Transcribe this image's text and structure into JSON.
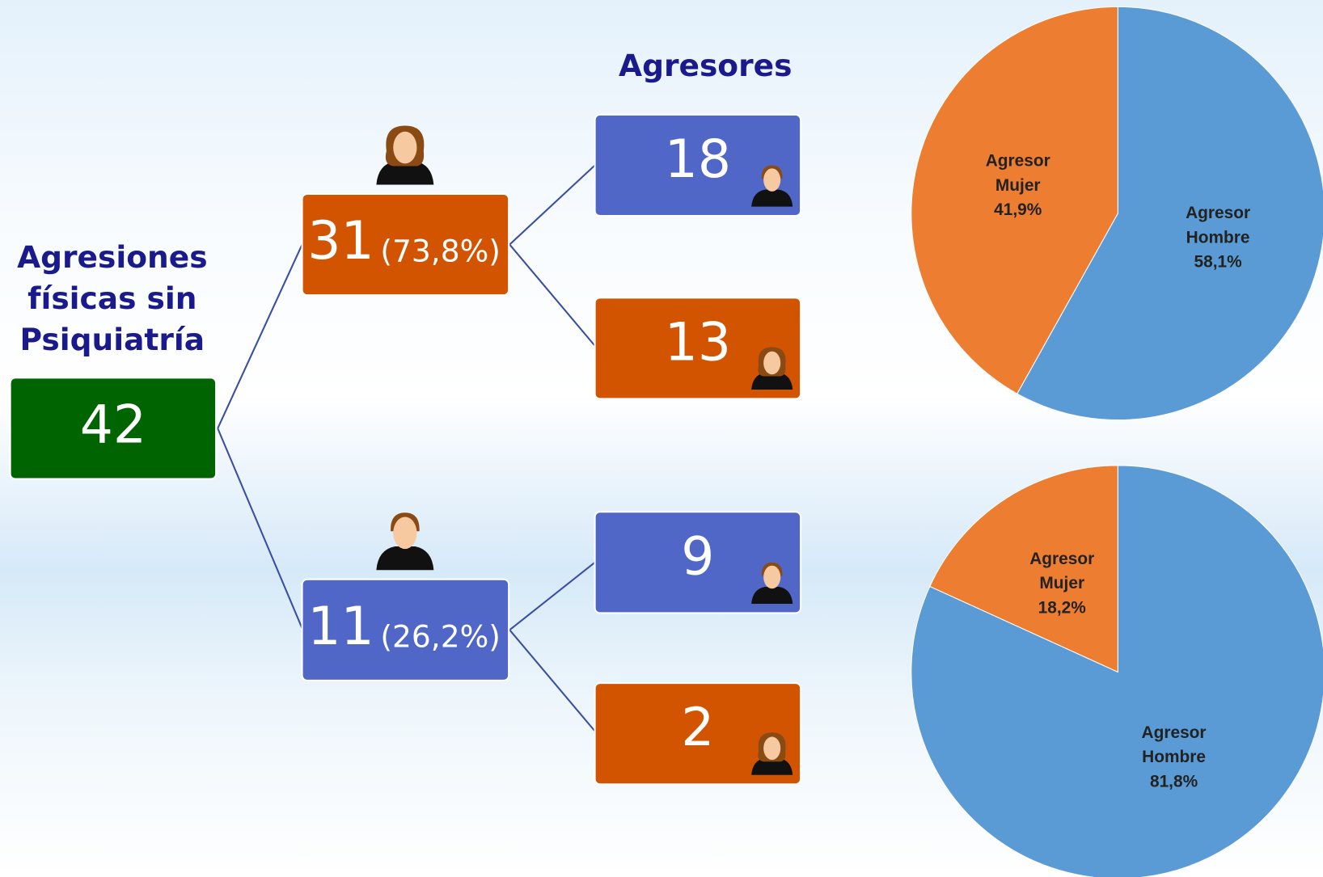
{
  "diagram": {
    "title": [
      "Agresiones",
      "físicas sin",
      "Psiquiatría"
    ],
    "root": "42",
    "header": "Agresores",
    "branches": [
      {
        "value": "31",
        "share": "(73,8%)",
        "children": [
          "18",
          "13"
        ]
      },
      {
        "value": "11",
        "share": "(26,2%)",
        "children": [
          "9",
          "2"
        ]
      }
    ]
  },
  "chart_data": [
    {
      "type": "pie",
      "categories": [
        "Agresor Mujer",
        "Agresor Hombre"
      ],
      "values": [
        41.9,
        58.1
      ],
      "value_labels": [
        "41,9%",
        "58,1%"
      ],
      "colors": [
        "#ed7d31",
        "#5b9bd5"
      ]
    },
    {
      "type": "pie",
      "categories": [
        "Agresor Mujer",
        "Agresor Hombre"
      ],
      "values": [
        18.2,
        81.8
      ],
      "value_labels": [
        "18,2%",
        "81,8%"
      ],
      "colors": [
        "#ed7d31",
        "#5b9bd5"
      ]
    }
  ]
}
